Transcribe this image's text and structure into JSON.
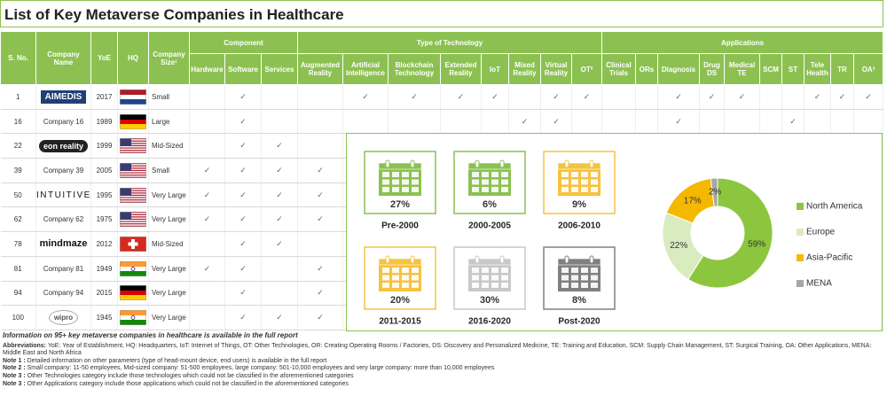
{
  "title": "List of Key Metaverse Companies in Healthcare",
  "table": {
    "columns": [
      "S. No.",
      "Company Name",
      "YoE",
      "HQ",
      "Company Size¹"
    ],
    "groups": [
      "Component",
      "Type of Technology",
      "Applications"
    ],
    "subcolumns": [
      "Hardware",
      "Software",
      "Services",
      "Augmented Reality",
      "Artificial Intelligence",
      "Blockchain Technology",
      "Extended Reality",
      "IoT",
      "Mixed Reality",
      "Virtual Reality",
      "OT²",
      "Clinical Trials",
      "ORs",
      "Diagnosis",
      "Drug DS",
      "Medical TE",
      "SCM",
      "ST",
      "Tele Health",
      "TR",
      "OA³"
    ],
    "rows": [
      {
        "sno": 1,
        "name": "AIMEDIS",
        "logo_style": "aimedis",
        "year": 2017,
        "flag": "nl",
        "size": "Small",
        "marks": [
          null,
          "✓",
          null,
          null,
          "✓",
          "✓",
          "✓",
          "✓",
          null,
          "✓",
          "✓",
          null,
          null,
          "✓",
          "✓",
          "✓",
          null,
          null,
          "✓",
          "✓",
          "✓"
        ]
      },
      {
        "sno": 16,
        "name": "Company 16",
        "year": 1989,
        "flag": "de",
        "size": "Large",
        "marks": [
          null,
          "✓",
          null,
          null,
          null,
          null,
          null,
          null,
          "✓",
          "✓",
          null,
          null,
          null,
          "✓",
          null,
          null,
          null,
          "✓",
          null,
          null,
          null
        ]
      },
      {
        "sno": 22,
        "name": "eon reality",
        "logo_style": "eon",
        "year": 1999,
        "flag": "us",
        "size": "Mid-Sized",
        "marks": [
          null,
          "✓",
          "✓",
          null,
          null,
          null,
          null,
          null,
          null,
          null,
          null,
          null,
          null,
          null,
          null,
          null,
          null,
          null,
          null,
          null,
          null
        ]
      },
      {
        "sno": 39,
        "name": "Company 39",
        "year": 2005,
        "flag": "us",
        "size": "Small",
        "marks": [
          "✓",
          "✓",
          "✓",
          "✓",
          null,
          null,
          null,
          null,
          null,
          null,
          null,
          null,
          null,
          null,
          null,
          null,
          null,
          null,
          null,
          null,
          null
        ]
      },
      {
        "sno": 50,
        "name": "INTUITIVE",
        "logo_style": "intuitive",
        "year": 1995,
        "flag": "us",
        "size": "Very Large",
        "marks": [
          "✓",
          "✓",
          "✓",
          "✓",
          null,
          null,
          null,
          null,
          null,
          null,
          null,
          null,
          null,
          null,
          null,
          null,
          null,
          null,
          null,
          null,
          null
        ]
      },
      {
        "sno": 62,
        "name": "Company 62",
        "year": 1975,
        "flag": "us",
        "size": "Very Large",
        "marks": [
          "✓",
          "✓",
          "✓",
          "✓",
          null,
          null,
          null,
          null,
          null,
          null,
          null,
          null,
          null,
          null,
          null,
          null,
          null,
          null,
          null,
          null,
          null
        ]
      },
      {
        "sno": 78,
        "name": "mindmaze",
        "logo_style": "mindmaze",
        "year": 2012,
        "flag": "ch",
        "size": "Mid-Sized",
        "marks": [
          null,
          "✓",
          "✓",
          null,
          null,
          null,
          null,
          null,
          null,
          null,
          null,
          null,
          null,
          null,
          null,
          null,
          null,
          null,
          null,
          null,
          null
        ]
      },
      {
        "sno": 81,
        "name": "Company 81",
        "year": 1949,
        "flag": "in",
        "size": "Very Large",
        "marks": [
          "✓",
          "✓",
          null,
          "✓",
          null,
          null,
          null,
          null,
          null,
          null,
          null,
          null,
          null,
          null,
          null,
          null,
          null,
          null,
          null,
          null,
          null
        ]
      },
      {
        "sno": 94,
        "name": "Company 94",
        "year": 2015,
        "flag": "de",
        "size": "Very Large",
        "marks": [
          null,
          "✓",
          null,
          "✓",
          null,
          null,
          null,
          null,
          null,
          null,
          null,
          null,
          null,
          null,
          null,
          null,
          null,
          null,
          null,
          null,
          null
        ]
      },
      {
        "sno": 100,
        "name": "wipro",
        "logo_style": "wipro",
        "year": 1945,
        "flag": "in",
        "size": "Very Large",
        "marks": [
          null,
          "✓",
          "✓",
          "✓",
          null,
          null,
          null,
          null,
          null,
          null,
          null,
          null,
          null,
          null,
          null,
          null,
          null,
          null,
          null,
          null,
          null
        ]
      }
    ]
  },
  "year_cards": [
    {
      "label": "Pre-2000",
      "value": "27%",
      "color": "#8cc152"
    },
    {
      "label": "2000-2005",
      "value": "6%",
      "color": "#8cc152"
    },
    {
      "label": "2006-2010",
      "value": "9%",
      "color": "#f5c342"
    },
    {
      "label": "2011-2015",
      "value": "20%",
      "color": "#f5c342"
    },
    {
      "label": "2016-2020",
      "value": "30%",
      "color": "#c8c8c8"
    },
    {
      "label": "Post-2020",
      "value": "8%",
      "color": "#808080"
    }
  ],
  "chart_data": {
    "type": "pie",
    "donut": true,
    "legend": "right",
    "categories": [
      "North America",
      "Europe",
      "Asia-Pacific",
      "MENA"
    ],
    "values": [
      59,
      22,
      17,
      2
    ],
    "value_labels": [
      "59%",
      "22%",
      "17%",
      "2%"
    ],
    "colors": [
      "#8cc63f",
      "#d9ecc0",
      "#f5b800",
      "#a6a6a6"
    ]
  },
  "footer": {
    "report_note": "Information on 95+ key metaverse companies in healthcare is available in the full report",
    "notes": [
      {
        "label": "Abbreviations:",
        "text": "YoE: Year of Establishment, HQ: Headquarters, IoT: Internet of Things, OT: Other Technologies, OR: Creating Operating Rooms / Factories, DS: Discovery and Personalized Medicine, TE: Training and Education, SCM: Supply Chain Management, ST: Surgical Training, OA: Other Applications, MENA: Middle East and North Africa"
      },
      {
        "label": "Note 1 :",
        "text": "Detailed information on other parameters (type of head-mount device, end users) is available in the full report"
      },
      {
        "label": "Note 2 :",
        "text": "Small company: 11-50 employees, Mid-sized company: 51-500 employees, large company: 501-10,000 employees and very large company: more than 10,000 employees"
      },
      {
        "label": "Note 3 :",
        "text": "Other Technologies category include those technologies which could not be classified in the aforementioned categories"
      },
      {
        "label": "Note 3 :",
        "text": "Other Applications category include those applications which could not be classified in the aforementioned categories"
      }
    ]
  }
}
